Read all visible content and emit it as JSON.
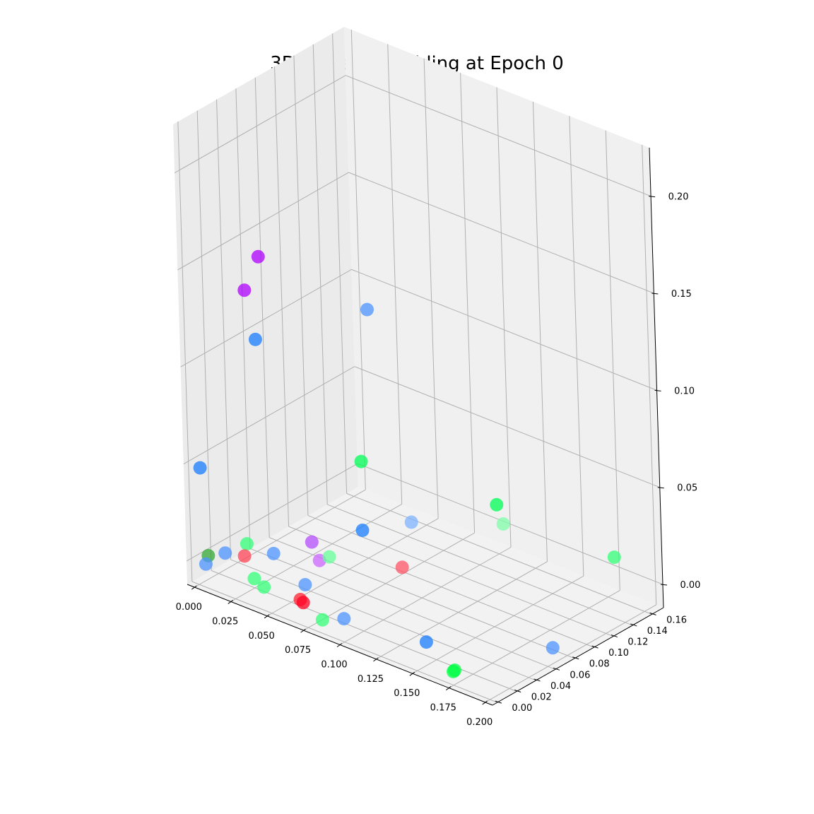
{
  "chart_data": {
    "type": "scatter3d",
    "title": "3D Node Embedding at Epoch 0",
    "xlabel": "",
    "ylabel": "",
    "zlabel": "",
    "xlim": [
      -0.005,
      0.205
    ],
    "ylim": [
      -0.005,
      0.172
    ],
    "zlim": [
      -0.012,
      0.225
    ],
    "x_ticks": [
      "0.000",
      "0.025",
      "0.050",
      "0.075",
      "0.100",
      "0.125",
      "0.150",
      "0.175",
      "0.200"
    ],
    "y_ticks": [
      "0.00",
      "0.02",
      "0.04",
      "0.06",
      "0.08",
      "0.10",
      "0.12",
      "0.14",
      "0.16"
    ],
    "z_ticks": [
      "0.00",
      "0.05",
      "0.10",
      "0.15",
      "0.20"
    ],
    "grid": true,
    "points": [
      {
        "x": 0.0,
        "y": 0.07,
        "z": 0.137,
        "color": "#b000ff"
      },
      {
        "x": 0.0,
        "y": 0.055,
        "z": 0.124,
        "color": "#b000ff"
      },
      {
        "x": 0.01,
        "y": 0.05,
        "z": 0.103,
        "color": "#1a7cff"
      },
      {
        "x": 0.02,
        "y": 0.15,
        "z": 0.093,
        "color": "#4d94ff"
      },
      {
        "x": 0.003,
        "y": 0.0,
        "z": 0.049,
        "color": "#1a7cff"
      },
      {
        "x": 0.18,
        "y": 0.16,
        "z": 0.01,
        "color": "#33ff77"
      },
      {
        "x": 0.13,
        "y": 0.115,
        "z": 0.035,
        "color": "#00ff55"
      },
      {
        "x": 0.04,
        "y": 0.11,
        "z": 0.032,
        "color": "#00ff55"
      },
      {
        "x": 0.1,
        "y": 0.165,
        "z": 0.002,
        "color": "#80ffaa"
      },
      {
        "x": 0.06,
        "y": 0.13,
        "z": 0.001,
        "color": "#80b3ff"
      },
      {
        "x": 0.045,
        "y": 0.05,
        "z": 0.009,
        "color": "#b54dff"
      },
      {
        "x": 0.05,
        "y": 0.05,
        "z": 0.001,
        "color": "#cc66ff"
      },
      {
        "x": 0.05,
        "y": 0.06,
        "z": 0.0,
        "color": "#66ff99"
      },
      {
        "x": 0.06,
        "y": 0.08,
        "z": 0.011,
        "color": "#1a7cff"
      },
      {
        "x": 0.025,
        "y": 0.04,
        "z": 0.0,
        "color": "#4d94ff"
      },
      {
        "x": 0.08,
        "y": 0.09,
        "z": -0.005,
        "color": "#ff5566"
      },
      {
        "x": 0.19,
        "y": 0.08,
        "z": -0.011,
        "color": "#4d94ff"
      },
      {
        "x": 0.15,
        "y": 0.01,
        "z": 0.0,
        "color": "#1a7cff"
      },
      {
        "x": 0.01,
        "y": 0.035,
        "z": 0.002,
        "color": "#33ff77"
      },
      {
        "x": 0.015,
        "y": 0.025,
        "z": 0.0,
        "color": "#ff4455"
      },
      {
        "x": 0.005,
        "y": 0.02,
        "z": 0.0,
        "color": "#4d94ff"
      },
      {
        "x": 0.06,
        "y": 0.02,
        "z": 0.0,
        "color": "#4d94ff"
      },
      {
        "x": 0.1,
        "y": 0.0,
        "z": 0.0,
        "color": "#4d94ff"
      },
      {
        "x": 0.0,
        "y": 0.01,
        "z": 0.0,
        "color": "#33aa33"
      },
      {
        "x": 0.005,
        "y": 0.0,
        "z": 0.0,
        "color": "#4d94ff"
      },
      {
        "x": 0.035,
        "y": 0.005,
        "z": 0.0,
        "color": "#33ff77"
      },
      {
        "x": 0.045,
        "y": 0.0,
        "z": 0.0,
        "color": "#33ff77"
      },
      {
        "x": 0.07,
        "y": 0.0,
        "z": 0.001,
        "color": "#ff2233"
      },
      {
        "x": 0.072,
        "y": 0.0,
        "z": 0.0,
        "color": "#ff0022"
      },
      {
        "x": 0.085,
        "y": 0.0,
        "z": -0.005,
        "color": "#33ff77"
      },
      {
        "x": 0.175,
        "y": 0.0,
        "z": -0.005,
        "color": "#00ff44"
      },
      {
        "x": 0.176,
        "y": 0.0,
        "z": -0.004,
        "color": "#00ff44"
      }
    ]
  }
}
